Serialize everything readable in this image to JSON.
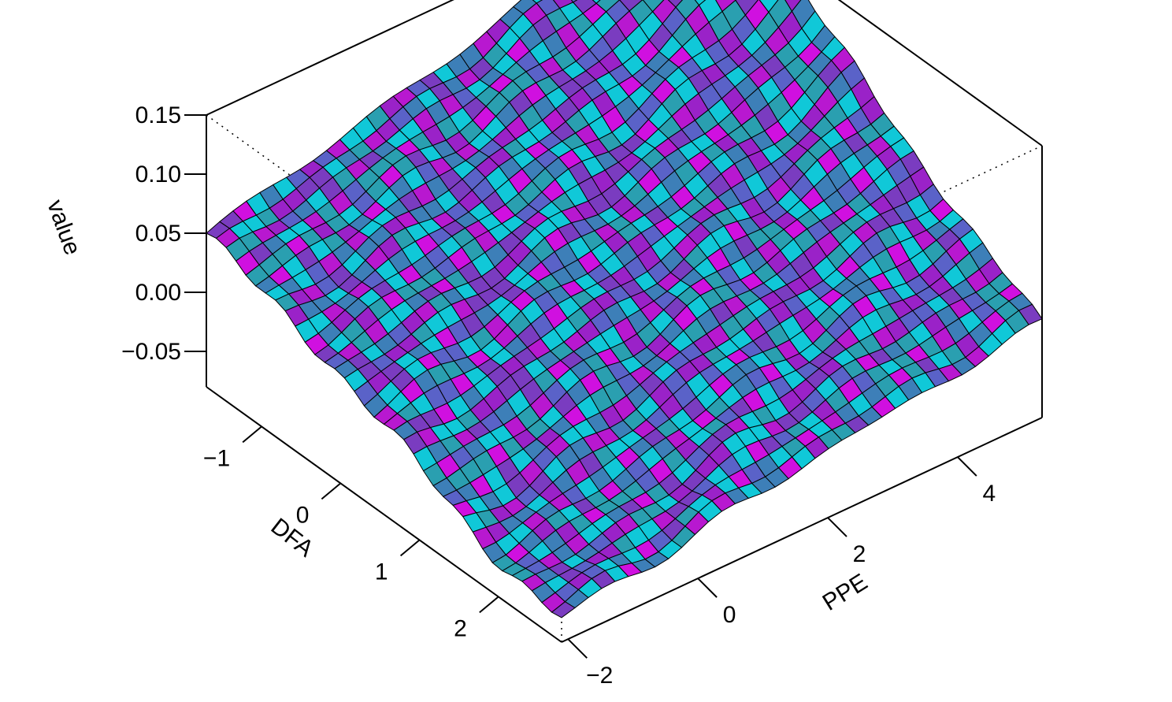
{
  "chart_data": {
    "type": "surface3d",
    "title": "",
    "axes": {
      "x": {
        "label": "DFA",
        "ticks": [
          "−1",
          "0",
          "1",
          "2"
        ],
        "tick_values": [
          -1,
          0,
          1,
          2
        ],
        "range": [
          -1.7,
          2.8
        ]
      },
      "y": {
        "label": "PPE",
        "ticks": [
          "−2",
          "0",
          "2",
          "4"
        ],
        "tick_values": [
          -2,
          0,
          2,
          4
        ],
        "range": [
          -2.1,
          5.3
        ]
      },
      "z": {
        "label": "value",
        "ticks": [
          "0.15",
          "0.10",
          "0.05",
          "0.00",
          "−0.05"
        ],
        "tick_values": [
          0.15,
          0.1,
          0.05,
          0.0,
          -0.05
        ],
        "range": [
          -0.08,
          0.15
        ]
      }
    },
    "grid": false,
    "surface": {
      "description": "value rises to about 0.15 at highest PPE and lowest DFA; near 0 to 0.05 elsewhere",
      "corner_values": {
        "dfa_min_ppe_min": 0.05,
        "dfa_min_ppe_max": 0.15,
        "dfa_max_ppe_min": -0.05,
        "dfa_max_ppe_max": 0.0
      },
      "grid_size": [
        36,
        36
      ]
    },
    "colors": {
      "palette": [
        "#10c8d8",
        "#2a9fb0",
        "#3d7fb8",
        "#5a62c8",
        "#7a3cc0",
        "#9a22c8",
        "#b818d0",
        "#d010e0"
      ],
      "edge": "#000000"
    }
  }
}
